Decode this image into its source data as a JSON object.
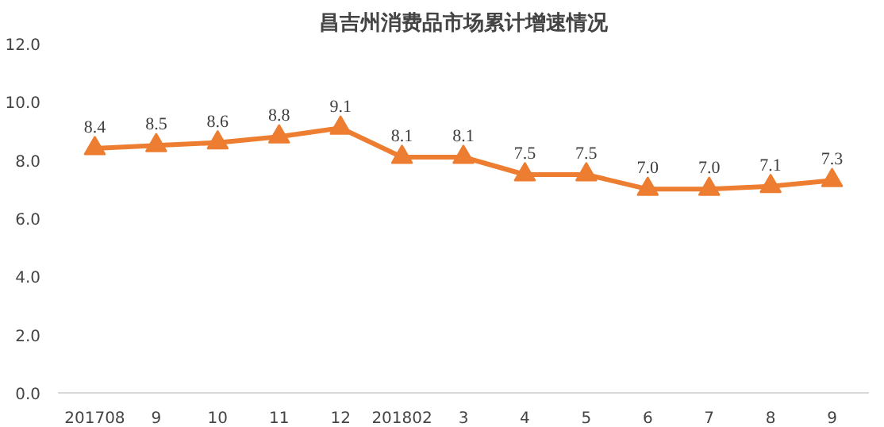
{
  "chart_data": {
    "type": "line",
    "title": "昌吉州消费品市场累计增速情况",
    "categories": [
      "201708",
      "9",
      "10",
      "11",
      "12",
      "201802",
      "3",
      "4",
      "5",
      "6",
      "7",
      "8",
      "9"
    ],
    "series": [
      {
        "color": "#ed7d31",
        "values": [
          8.4,
          8.5,
          8.6,
          8.8,
          9.1,
          8.1,
          8.1,
          7.5,
          7.5,
          7.0,
          7.0,
          7.1,
          7.3
        ],
        "value_labels": [
          "8.4",
          "8.5",
          "8.6",
          "8.8",
          "9.1",
          "8.1",
          "8.1",
          "7.5",
          "7.5",
          "7.0",
          "7.0",
          "7.1",
          "7.3"
        ]
      }
    ],
    "ylim": [
      0,
      12
    ],
    "yticks": [
      {
        "value": 0,
        "label": "0.0"
      },
      {
        "value": 2,
        "label": "2.0"
      },
      {
        "value": 4,
        "label": "4.0"
      },
      {
        "value": 6,
        "label": "6.0"
      },
      {
        "value": 8,
        "label": "8.0"
      },
      {
        "value": 10,
        "label": "10.0"
      },
      {
        "value": 12,
        "label": "12.0"
      }
    ],
    "marker": "triangle",
    "line_style": "solid",
    "grid": false
  }
}
